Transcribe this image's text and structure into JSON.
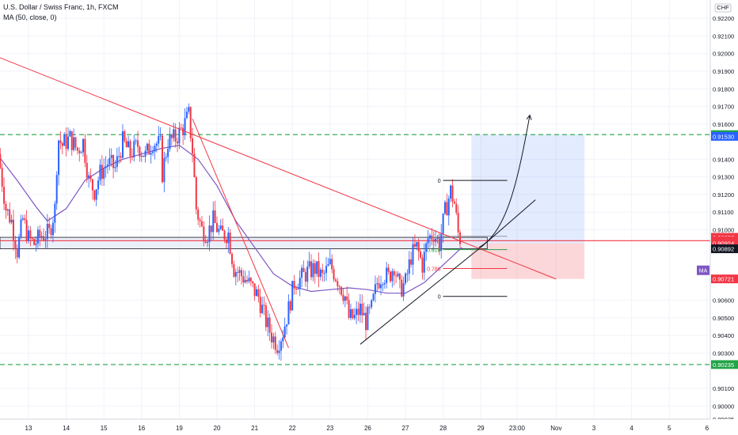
{
  "header": {
    "symbol_title": "U.S. Dollar / Swiss Franc, 1h, FXCM",
    "indicator_title": "MA (50, close, 0)"
  },
  "price_axis": {
    "currency": "CHF",
    "ticks": [
      "0.92200",
      "0.92100",
      "0.92000",
      "0.91900",
      "0.91800",
      "0.91700",
      "0.91600",
      "0.91400",
      "0.91300",
      "0.91200",
      "0.91100",
      "0.91000",
      "0.90600",
      "0.90500",
      "0.90400",
      "0.90300",
      "0.90100",
      "0.90000",
      "0.89925"
    ],
    "badges": [
      {
        "text": "0.91540",
        "color": "#22a447",
        "price": 0.9154
      },
      {
        "text": "0.91530",
        "color": "#2962ff",
        "price": 0.9153
      },
      {
        "text": "0.90957",
        "color": "#f23645",
        "price": 0.90957
      },
      {
        "text": "24:55",
        "color": "#f23645",
        "price": 0.90938
      },
      {
        "text": "0.90924",
        "color": "#f23645",
        "price": 0.90924
      },
      {
        "text": "0.90892",
        "color": "#131722",
        "price": 0.90892
      },
      {
        "text": "0.90721",
        "color": "#f23645",
        "price": 0.90721
      },
      {
        "text": "0.90235",
        "color": "#22a447",
        "price": 0.90235
      }
    ],
    "ma_tag": "MA"
  },
  "time_axis": {
    "ticks": [
      {
        "label": "13",
        "day": 0
      },
      {
        "label": "14",
        "day": 1
      },
      {
        "label": "15",
        "day": 2
      },
      {
        "label": "16",
        "day": 3
      },
      {
        "label": "19",
        "day": 4
      },
      {
        "label": "20",
        "day": 5
      },
      {
        "label": "21",
        "day": 6
      },
      {
        "label": "22",
        "day": 7
      },
      {
        "label": "23",
        "day": 8
      },
      {
        "label": "26",
        "day": 9
      },
      {
        "label": "27",
        "day": 10
      },
      {
        "label": "28",
        "day": 11
      },
      {
        "label": "29",
        "day": 12
      },
      {
        "label": "23:00",
        "day": 12.96
      },
      {
        "label": "Nov",
        "day": 14
      },
      {
        "label": "3",
        "day": 15
      },
      {
        "label": "4",
        "day": 16
      },
      {
        "label": "5",
        "day": 17
      },
      {
        "label": "6",
        "day": 18
      }
    ]
  },
  "fib_labels": [
    "0",
    "0.5",
    "0.618",
    "0.786",
    "0"
  ],
  "chart_data": {
    "type": "candlestick",
    "title": "U.S. Dollar / Swiss Franc, 1h, FXCM",
    "y_range": [
      0.8988,
      0.923
    ],
    "x_range_days": [
      -0.5,
      18.5
    ],
    "candle_colors": {
      "up": "#2962ff",
      "down": "#f23645"
    },
    "ma_color": "#7e57c2",
    "price_path": [
      [
        -0.8,
        0.9143
      ],
      [
        -0.6,
        0.9112
      ],
      [
        -0.45,
        0.9105
      ],
      [
        -0.3,
        0.9088
      ],
      [
        -0.15,
        0.9106
      ],
      [
        0.0,
        0.9095
      ],
      [
        0.15,
        0.9092
      ],
      [
        0.35,
        0.9097
      ],
      [
        0.55,
        0.9098
      ],
      [
        0.7,
        0.9112
      ],
      [
        0.78,
        0.9152
      ],
      [
        0.9,
        0.9148
      ],
      [
        1.1,
        0.9152
      ],
      [
        1.3,
        0.9145
      ],
      [
        1.45,
        0.915
      ],
      [
        1.6,
        0.9128
      ],
      [
        1.75,
        0.9122
      ],
      [
        1.9,
        0.9132
      ],
      [
        2.1,
        0.9138
      ],
      [
        2.3,
        0.9135
      ],
      [
        2.5,
        0.915
      ],
      [
        2.7,
        0.9143
      ],
      [
        2.9,
        0.9148
      ],
      [
        3.1,
        0.9142
      ],
      [
        3.3,
        0.915
      ],
      [
        3.5,
        0.9148
      ],
      [
        3.55,
        0.9132
      ],
      [
        3.7,
        0.915
      ],
      [
        3.9,
        0.9152
      ],
      [
        4.1,
        0.9158
      ],
      [
        4.25,
        0.9165
      ],
      [
        4.35,
        0.9145
      ],
      [
        4.45,
        0.9112
      ],
      [
        4.6,
        0.91
      ],
      [
        4.75,
        0.9098
      ],
      [
        4.9,
        0.9105
      ],
      [
        5.1,
        0.9097
      ],
      [
        5.3,
        0.9098
      ],
      [
        5.45,
        0.9078
      ],
      [
        5.6,
        0.9075
      ],
      [
        5.75,
        0.9072
      ],
      [
        5.9,
        0.9068
      ],
      [
        6.1,
        0.9062
      ],
      [
        6.3,
        0.9048
      ],
      [
        6.45,
        0.904
      ],
      [
        6.6,
        0.9035
      ],
      [
        6.75,
        0.9042
      ],
      [
        6.9,
        0.9055
      ],
      [
        7.05,
        0.907
      ],
      [
        7.2,
        0.9072
      ],
      [
        7.4,
        0.9076
      ],
      [
        7.6,
        0.9078
      ],
      [
        7.8,
        0.9073
      ],
      [
        8.0,
        0.908
      ],
      [
        8.2,
        0.9072
      ],
      [
        8.4,
        0.9062
      ],
      [
        8.5,
        0.905
      ],
      [
        8.65,
        0.905
      ],
      [
        8.8,
        0.9055
      ],
      [
        8.95,
        0.9048
      ],
      [
        9.1,
        0.9055
      ],
      [
        9.25,
        0.907
      ],
      [
        9.4,
        0.9075
      ],
      [
        9.55,
        0.9073
      ],
      [
        9.7,
        0.908
      ],
      [
        9.85,
        0.9066
      ],
      [
        10.0,
        0.907
      ],
      [
        10.15,
        0.9085
      ],
      [
        10.3,
        0.909
      ],
      [
        10.45,
        0.908
      ],
      [
        10.6,
        0.9095
      ],
      [
        10.75,
        0.9098
      ],
      [
        10.9,
        0.9092
      ],
      [
        11.05,
        0.911
      ],
      [
        11.2,
        0.9122
      ],
      [
        11.3,
        0.9115
      ],
      [
        11.4,
        0.9098
      ],
      [
        11.5,
        0.9092
      ]
    ],
    "ma_path": [
      [
        -0.8,
        0.9142
      ],
      [
        -0.3,
        0.9128
      ],
      [
        0.2,
        0.9113
      ],
      [
        0.5,
        0.9105
      ],
      [
        1.0,
        0.9112
      ],
      [
        1.5,
        0.9128
      ],
      [
        2.0,
        0.9135
      ],
      [
        2.5,
        0.914
      ],
      [
        3.0,
        0.9143
      ],
      [
        3.5,
        0.9146
      ],
      [
        4.0,
        0.9148
      ],
      [
        4.5,
        0.914
      ],
      [
        5.0,
        0.9125
      ],
      [
        5.5,
        0.9105
      ],
      [
        6.0,
        0.909
      ],
      [
        6.5,
        0.9075
      ],
      [
        7.0,
        0.9068
      ],
      [
        7.5,
        0.9065
      ],
      [
        8.0,
        0.9066
      ],
      [
        8.5,
        0.9067
      ],
      [
        9.0,
        0.9066
      ],
      [
        9.5,
        0.9064
      ],
      [
        10.0,
        0.9064
      ],
      [
        10.5,
        0.907
      ],
      [
        11.0,
        0.908
      ],
      [
        11.5,
        0.909
      ]
    ],
    "horizontal_levels": [
      {
        "price": 0.9154,
        "style": "dashed",
        "color": "#22a447"
      },
      {
        "price": 0.90235,
        "style": "dashed",
        "color": "#22a447"
      }
    ],
    "support_zone": {
      "top": 0.90957,
      "bottom": 0.90892
    },
    "position_box": {
      "start_day": 11.75,
      "end_day": 14.75,
      "entry": 0.90924,
      "target": 0.9154,
      "stop": 0.90721
    },
    "fib_retracement": {
      "start_day": 10.2,
      "end_day": 12.7,
      "levels": [
        {
          "ratio": "0",
          "price": 0.9128
        },
        {
          "ratio": "0.5",
          "price": 0.90963
        },
        {
          "ratio": "0.618",
          "price": 0.90887
        },
        {
          "ratio": "0.786",
          "price": 0.9078
        },
        {
          "ratio": "0",
          "price": 0.90622
        }
      ]
    },
    "trendlines": [
      {
        "from": [
          -0.8,
          0.9198
        ],
        "to": [
          14.0,
          0.9072
        ],
        "color": "#f23645"
      },
      {
        "from": [
          4.35,
          0.9163
        ],
        "to": [
          6.9,
          0.9033
        ],
        "color": "#f23645"
      },
      {
        "from": [
          8.8,
          0.9035
        ],
        "to": [
          12.0,
          0.909
        ],
        "color": "#131722"
      },
      {
        "from": [
          12.0,
          0.909
        ],
        "to": [
          13.45,
          0.9117
        ],
        "color": "#131722"
      }
    ],
    "projection_arrow": {
      "points": [
        [
          11.95,
          0.909
        ],
        [
          12.7,
          0.9098
        ],
        [
          13.0,
          0.913
        ],
        [
          13.3,
          0.9165
        ]
      ],
      "color": "#131722"
    }
  }
}
